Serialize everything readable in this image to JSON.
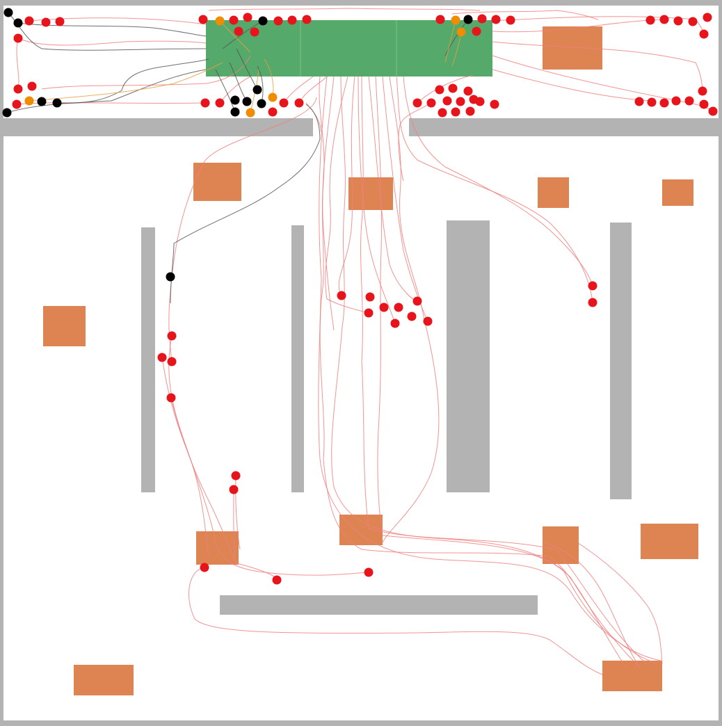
{
  "map": {
    "kind": "agent-trajectory-map",
    "colors": {
      "background": "#ffffff",
      "wall": "#b3b3b3",
      "obstacle": "#de8352",
      "target_zone": "#55a96a",
      "agent_red": "#e8141c",
      "agent_orange": "#f08c00",
      "agent_black": "#000000",
      "trail_red": "#f08080",
      "trail_dark": "#555555",
      "trail_orange": "#e8a040"
    },
    "agent_counts": {
      "red": 104,
      "orange": 6,
      "black": 16
    }
  }
}
